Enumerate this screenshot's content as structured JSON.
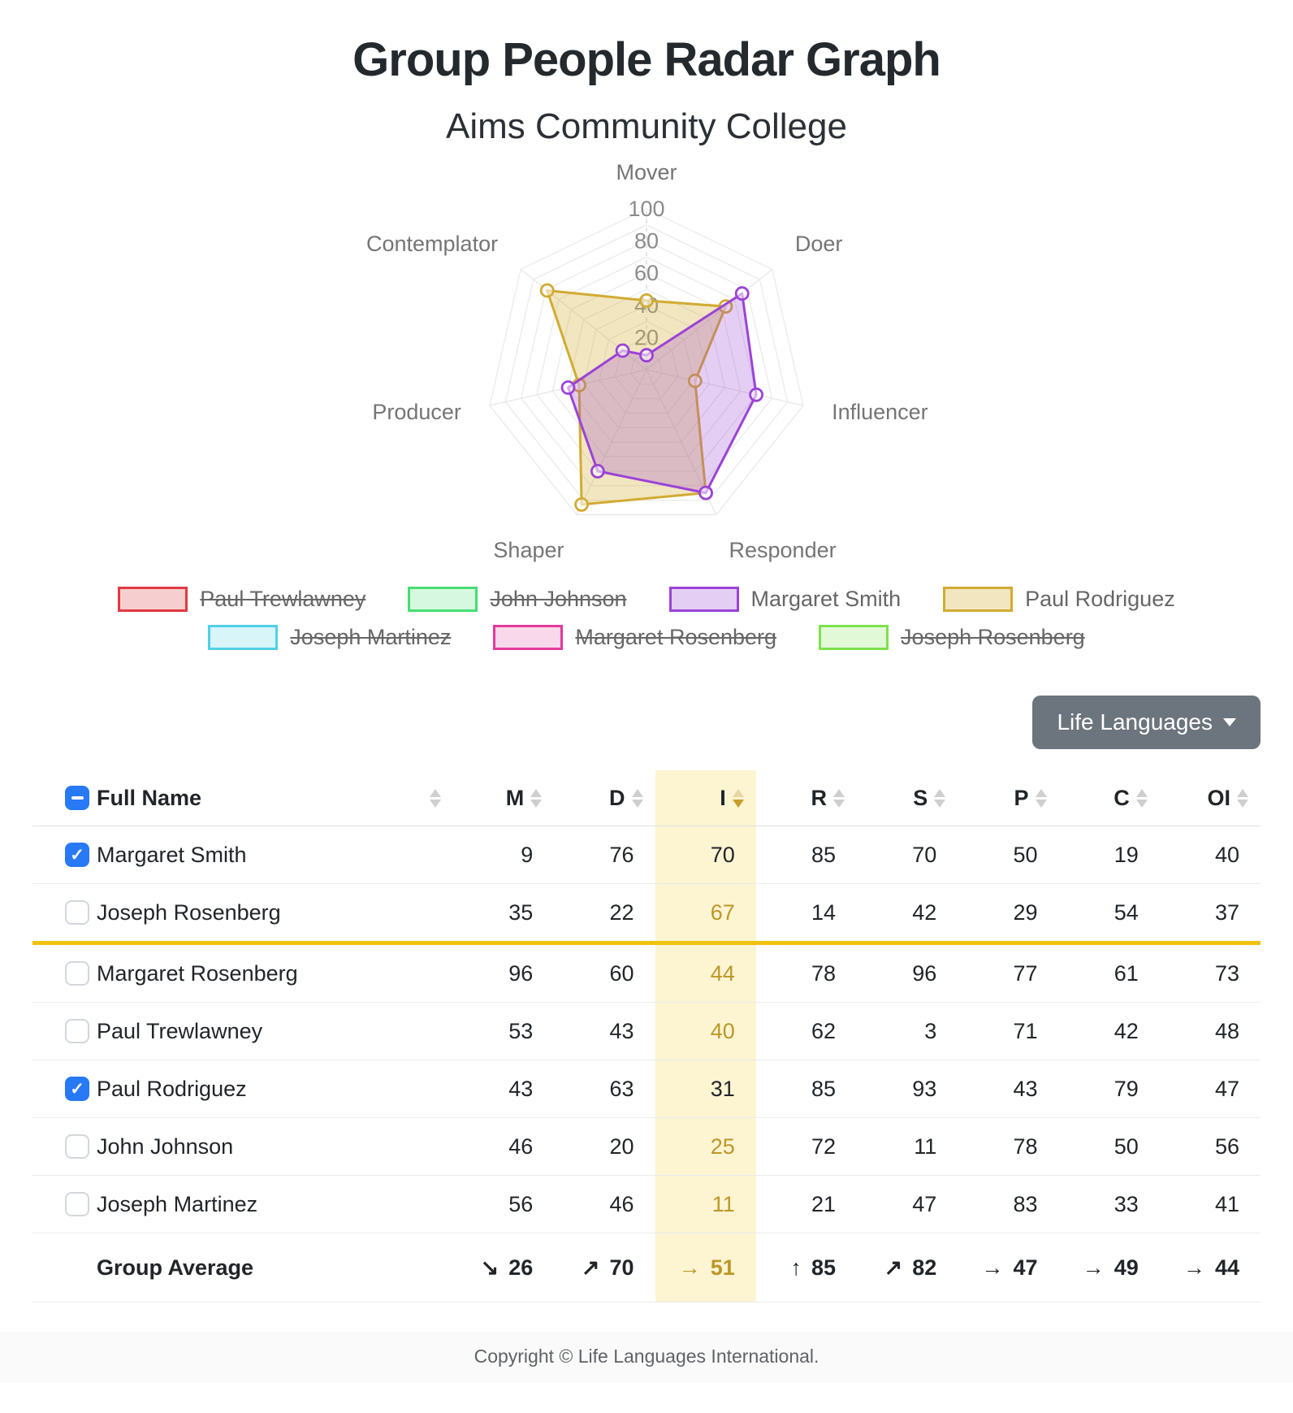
{
  "page": {
    "title": "Group People Radar Graph",
    "subtitle": "Aims Community College",
    "footer": "Copyright © Life Languages International."
  },
  "toolbar": {
    "dropdown_label": "Life Languages"
  },
  "chart_data": {
    "type": "radar",
    "axes": [
      "Mover",
      "Doer",
      "Influencer",
      "Responder",
      "Shaper",
      "Producer",
      "Contemplator"
    ],
    "ticks": [
      20,
      40,
      60,
      80,
      100
    ],
    "rmax": 100,
    "grid_step": 10,
    "legend_position": "bottom",
    "series": [
      {
        "name": "Paul Trewlawney",
        "color": "#e03a40",
        "fill": "rgba(224,58,64,0.25)",
        "hidden": true
      },
      {
        "name": "John Johnson",
        "color": "#47dd73",
        "fill": "rgba(71,221,115,0.22)",
        "hidden": true
      },
      {
        "name": "Margaret Smith",
        "color": "#9b43d6",
        "fill": "rgba(155,67,214,0.26)",
        "hidden": false,
        "values": [
          9,
          76,
          70,
          85,
          70,
          50,
          19
        ]
      },
      {
        "name": "Paul Rodriguez",
        "color": "#d2ab33",
        "fill": "rgba(214,178,60,0.33)",
        "hidden": false,
        "values": [
          43,
          63,
          31,
          85,
          93,
          43,
          79
        ]
      },
      {
        "name": "Joseph Martinez",
        "color": "#4fd0e8",
        "fill": "rgba(79,208,232,0.22)",
        "hidden": true
      },
      {
        "name": "Margaret Rosenberg",
        "color": "#e43a9b",
        "fill": "rgba(228,58,155,0.20)",
        "hidden": true
      },
      {
        "name": "Joseph Rosenberg",
        "color": "#7de24d",
        "fill": "rgba(125,226,77,0.22)",
        "hidden": true
      }
    ]
  },
  "table": {
    "select_all_state": "indeterminate",
    "name_column_label": "Full Name",
    "value_columns": [
      "M",
      "D",
      "I",
      "R",
      "S",
      "P",
      "C",
      "OI"
    ],
    "sort": {
      "column": "I",
      "direction": "desc"
    },
    "highlight_column": "I",
    "divider_after_row": 2,
    "rows": [
      {
        "name": "Margaret Smith",
        "checked": true,
        "values": [
          9,
          76,
          70,
          85,
          70,
          50,
          19,
          40
        ]
      },
      {
        "name": "Joseph Rosenberg",
        "checked": false,
        "values": [
          35,
          22,
          67,
          14,
          42,
          29,
          54,
          37
        ]
      },
      {
        "name": "Margaret Rosenberg",
        "checked": false,
        "values": [
          96,
          60,
          44,
          78,
          96,
          77,
          61,
          73
        ]
      },
      {
        "name": "Paul Trewlawney",
        "checked": false,
        "values": [
          53,
          43,
          40,
          62,
          3,
          71,
          42,
          48
        ]
      },
      {
        "name": "Paul Rodriguez",
        "checked": true,
        "values": [
          43,
          63,
          31,
          85,
          93,
          43,
          79,
          47
        ]
      },
      {
        "name": "John Johnson",
        "checked": false,
        "values": [
          46,
          20,
          25,
          72,
          11,
          78,
          50,
          56
        ]
      },
      {
        "name": "Joseph Martinez",
        "checked": false,
        "values": [
          56,
          46,
          11,
          21,
          47,
          83,
          33,
          41
        ]
      }
    ],
    "average_row": {
      "label": "Group Average",
      "cells": [
        {
          "arrow": "↘",
          "value": 26
        },
        {
          "arrow": "↗",
          "value": 70
        },
        {
          "arrow": "→",
          "value": 51
        },
        {
          "arrow": "↑",
          "value": 85
        },
        {
          "arrow": "↗",
          "value": 82
        },
        {
          "arrow": "→",
          "value": 47
        },
        {
          "arrow": "→",
          "value": 49
        },
        {
          "arrow": "→",
          "value": 44
        }
      ]
    }
  },
  "colors": {
    "accent_blue": "#2779f6",
    "highlight_bg": "#fdf4d2",
    "highlight_text": "#bd9727",
    "divider_gold": "#f0c211",
    "button_gray": "#6c757d"
  }
}
